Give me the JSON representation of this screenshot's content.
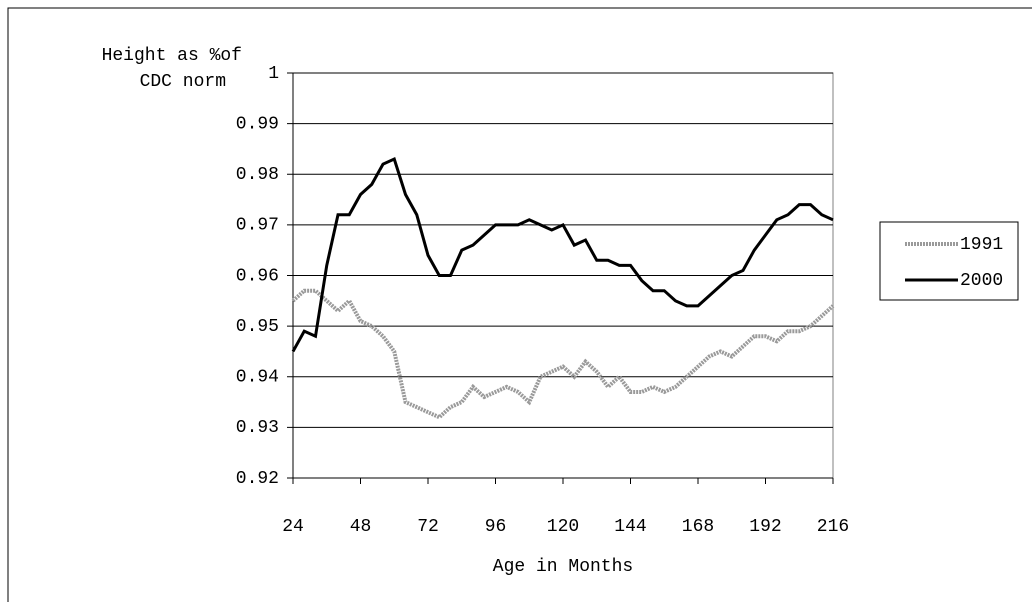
{
  "chart_data": {
    "type": "line",
    "ylabel_lines": [
      "Height as %of",
      "CDC norm"
    ],
    "xlabel": "Age in Months",
    "x": [
      24,
      28,
      32,
      36,
      40,
      44,
      48,
      52,
      56,
      60,
      64,
      68,
      72,
      76,
      80,
      84,
      88,
      92,
      96,
      100,
      104,
      108,
      112,
      116,
      120,
      124,
      128,
      132,
      136,
      140,
      144,
      148,
      152,
      156,
      160,
      164,
      168,
      172,
      176,
      180,
      184,
      188,
      192,
      196,
      200,
      204,
      208,
      212,
      216
    ],
    "series": [
      {
        "name": "1991",
        "color": "#9a9a9a",
        "values": [
          0.955,
          0.957,
          0.957,
          0.955,
          0.953,
          0.955,
          0.951,
          0.95,
          0.948,
          0.945,
          0.935,
          0.934,
          0.933,
          0.932,
          0.934,
          0.935,
          0.938,
          0.936,
          0.937,
          0.938,
          0.937,
          0.935,
          0.94,
          0.941,
          0.942,
          0.94,
          0.943,
          0.941,
          0.938,
          0.94,
          0.937,
          0.937,
          0.938,
          0.937,
          0.938,
          0.94,
          0.942,
          0.944,
          0.945,
          0.944,
          0.946,
          0.948,
          0.948,
          0.947,
          0.949,
          0.949,
          0.95,
          0.952,
          0.954
        ]
      },
      {
        "name": "2000",
        "color": "#000000",
        "values": [
          0.945,
          0.949,
          0.948,
          0.962,
          0.972,
          0.972,
          0.976,
          0.978,
          0.982,
          0.983,
          0.976,
          0.972,
          0.964,
          0.96,
          0.96,
          0.965,
          0.966,
          0.968,
          0.97,
          0.97,
          0.97,
          0.971,
          0.97,
          0.969,
          0.97,
          0.966,
          0.967,
          0.963,
          0.963,
          0.962,
          0.962,
          0.959,
          0.957,
          0.957,
          0.955,
          0.954,
          0.954,
          0.956,
          0.958,
          0.96,
          0.961,
          0.965,
          0.968,
          0.971,
          0.972,
          0.974,
          0.974,
          0.972,
          0.971
        ]
      }
    ],
    "xlim": [
      24,
      216
    ],
    "xticks": [
      24,
      48,
      72,
      96,
      120,
      144,
      168,
      192,
      216
    ],
    "ylim": [
      0.92,
      1
    ],
    "yticks": [
      0.92,
      0.93,
      0.94,
      0.95,
      0.96,
      0.97,
      0.98,
      0.99,
      1
    ],
    "grid": true,
    "legend": "right"
  }
}
